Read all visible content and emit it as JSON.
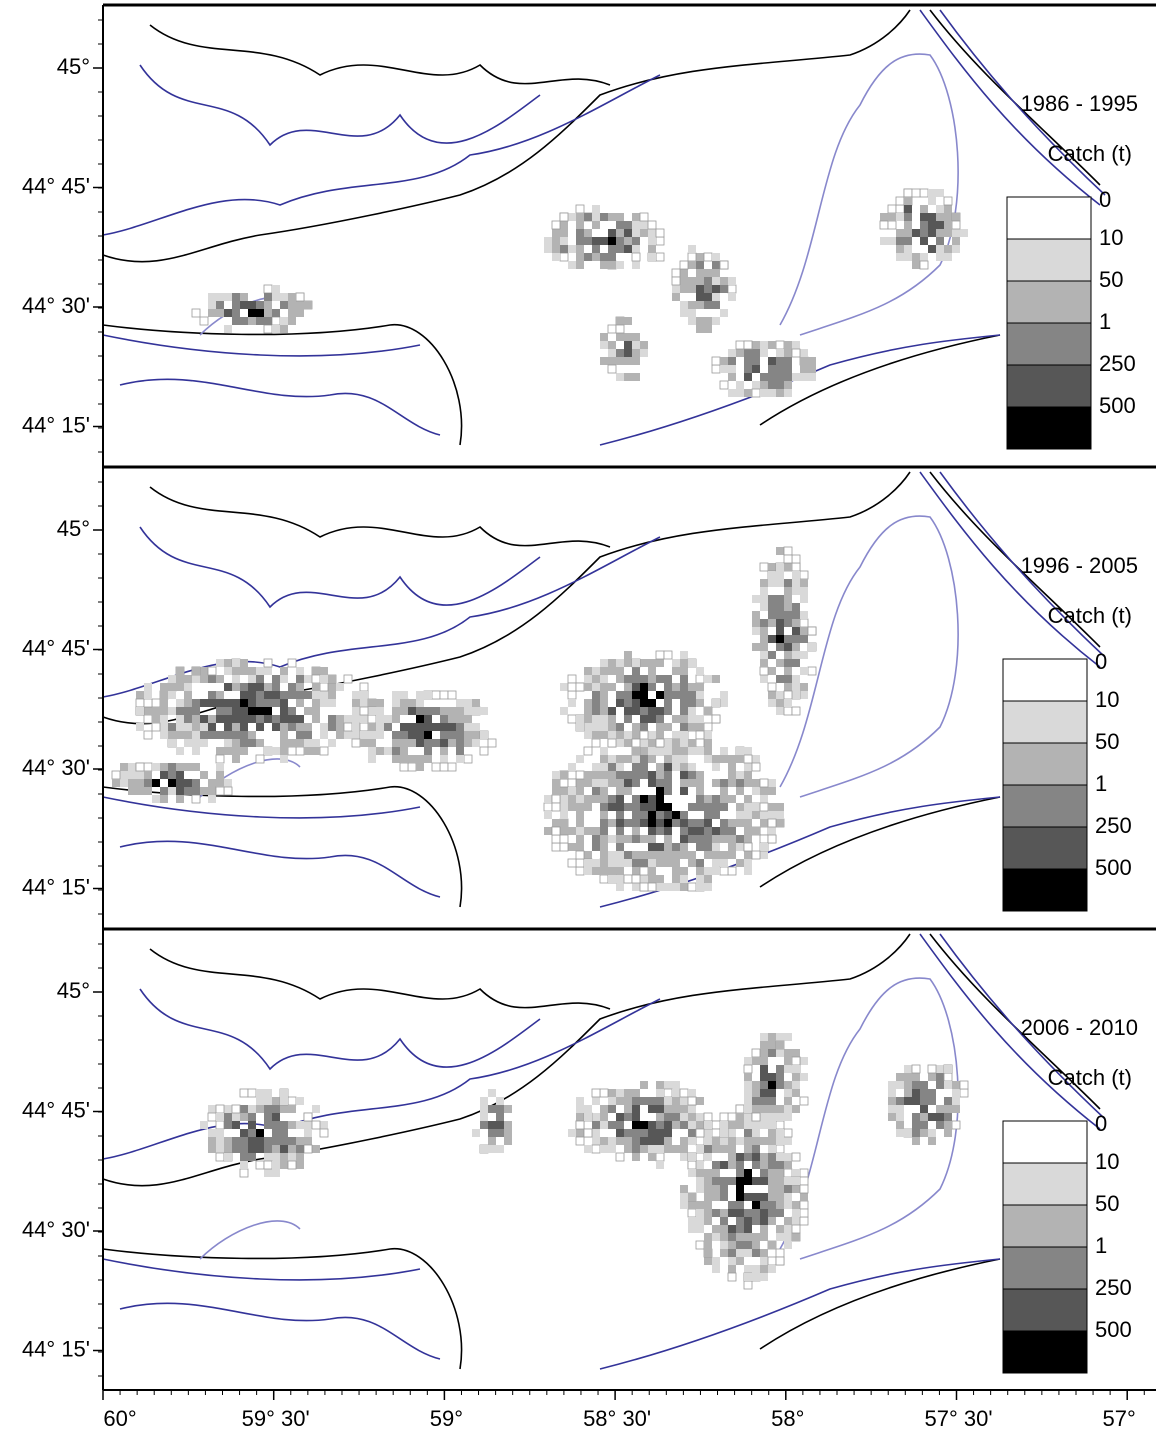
{
  "axes": {
    "x_labels": [
      "60°",
      "59° 30'",
      "59°",
      "58° 30'",
      "58°",
      "57° 30'",
      "57°"
    ],
    "y_labels": [
      "45°",
      "44° 45'",
      "44° 30'",
      "44° 15'"
    ]
  },
  "legend": {
    "title": "Catch (t)",
    "labels": [
      "0",
      "10",
      "50",
      "1",
      "250",
      "500"
    ]
  },
  "panels": [
    {
      "title": "1986 - 1995"
    },
    {
      "title": "1996 - 2005"
    },
    {
      "title": "2006 - 2010"
    }
  ]
}
